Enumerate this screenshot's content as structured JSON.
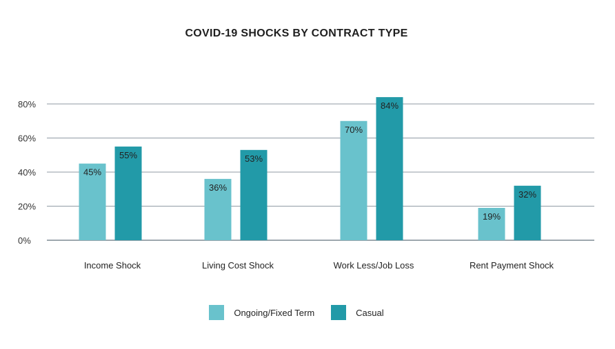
{
  "chart_data": {
    "type": "bar",
    "title": "COVID-19 SHOCKS BY CONTRACT TYPE",
    "categories": [
      "Income Shock",
      "Living Cost Shock",
      "Work Less/Job Loss",
      "Rent Payment Shock"
    ],
    "series": [
      {
        "name": "Ongoing/Fixed Term",
        "values": [
          45,
          36,
          70,
          19
        ],
        "labels": [
          "45%",
          "36%",
          "70%",
          "19%"
        ],
        "color": "#69c2cc"
      },
      {
        "name": "Casual",
        "values": [
          55,
          53,
          84,
          32
        ],
        "labels": [
          "55%",
          "53%",
          "84%",
          "32%"
        ],
        "color": "#229aa8"
      }
    ],
    "yticks": [
      "0%",
      "20%",
      "40%",
      "60%",
      "80%"
    ],
    "ylim": [
      0,
      90
    ],
    "grid": true,
    "legend_position": "bottom"
  }
}
